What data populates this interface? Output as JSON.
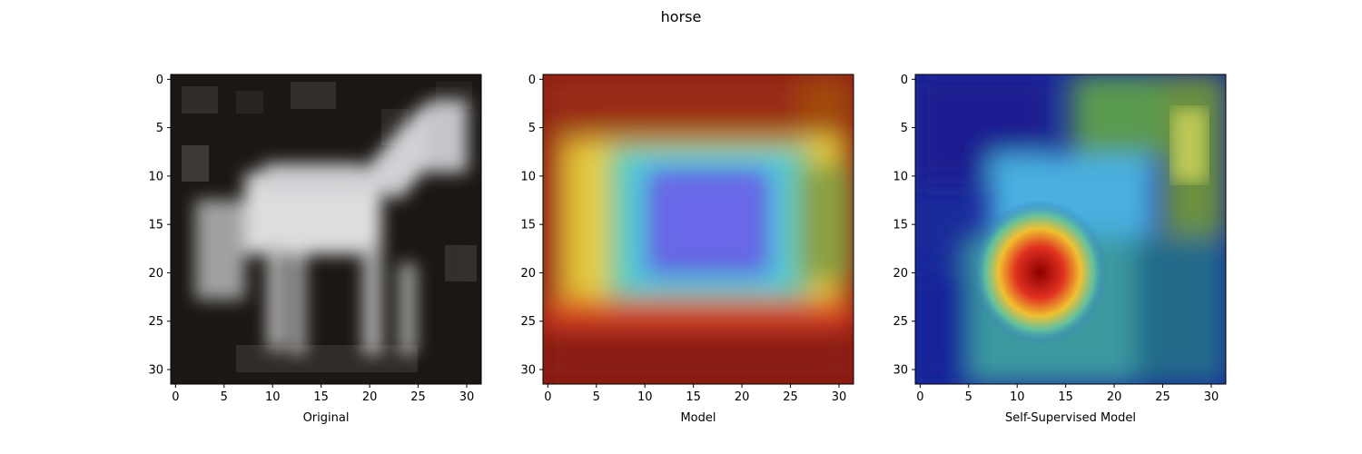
{
  "figure": {
    "title": "horse"
  },
  "panels": [
    {
      "label": "Original",
      "colormap": "grayscale-photo"
    },
    {
      "label": "Model",
      "colormap": "jet-overlay"
    },
    {
      "label": "Self-Supervised Model",
      "colormap": "jet-overlay"
    }
  ],
  "axes": {
    "x_ticks": [
      "0",
      "5",
      "10",
      "15",
      "20",
      "25",
      "30"
    ],
    "y_ticks": [
      "0",
      "5",
      "10",
      "15",
      "20",
      "25",
      "30"
    ],
    "x_range": [
      -0.5,
      31.5
    ],
    "y_range": [
      -0.5,
      31.5
    ],
    "image_grid": 32
  }
}
